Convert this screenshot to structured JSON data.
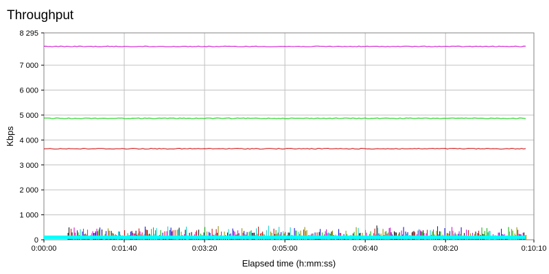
{
  "chart_data": {
    "type": "line",
    "title": "Throughput",
    "xlabel": "Elapsed time (h:mm:ss)",
    "ylabel": "Kbps",
    "xlim": [
      0,
      610
    ],
    "ylim": [
      0,
      8295
    ],
    "x_ticks": [
      {
        "value": 0,
        "label": "0:00:00"
      },
      {
        "value": 100,
        "label": "0:01:40"
      },
      {
        "value": 200,
        "label": "0:03:20"
      },
      {
        "value": 300,
        "label": "0:05:00"
      },
      {
        "value": 400,
        "label": "0:06:40"
      },
      {
        "value": 500,
        "label": "0:08:20"
      },
      {
        "value": 610,
        "label": "0:10:10"
      }
    ],
    "y_ticks": [
      {
        "value": 0,
        "label": "0"
      },
      {
        "value": 1000,
        "label": "1 000"
      },
      {
        "value": 2000,
        "label": "2 000"
      },
      {
        "value": 3000,
        "label": "3 000"
      },
      {
        "value": 4000,
        "label": "4 000"
      },
      {
        "value": 5000,
        "label": "5 000"
      },
      {
        "value": 6000,
        "label": "6 000"
      },
      {
        "value": 7000,
        "label": "7 000"
      },
      {
        "value": 8295,
        "label": "8 295"
      }
    ],
    "grid": true,
    "series": [
      {
        "color": "#cc00cc",
        "x": [
          0,
          610
        ],
        "y": [
          7750,
          7750
        ]
      },
      {
        "color": "#00cc00",
        "x": [
          0,
          610
        ],
        "y": [
          4870,
          4870
        ]
      },
      {
        "color": "#cc0000",
        "x": [
          0,
          610
        ],
        "y": [
          3650,
          3650
        ]
      },
      {
        "color": "#00ffff",
        "x": [
          0,
          610
        ],
        "y": [
          100,
          100
        ]
      }
    ],
    "noise_band": {
      "x_start": 30,
      "x_end": 610,
      "ymax": 600,
      "colors": [
        "#cc00cc",
        "#00aa00",
        "#cc0000",
        "#0000cc",
        "#000000",
        "#00cccc",
        "#888800"
      ]
    }
  }
}
